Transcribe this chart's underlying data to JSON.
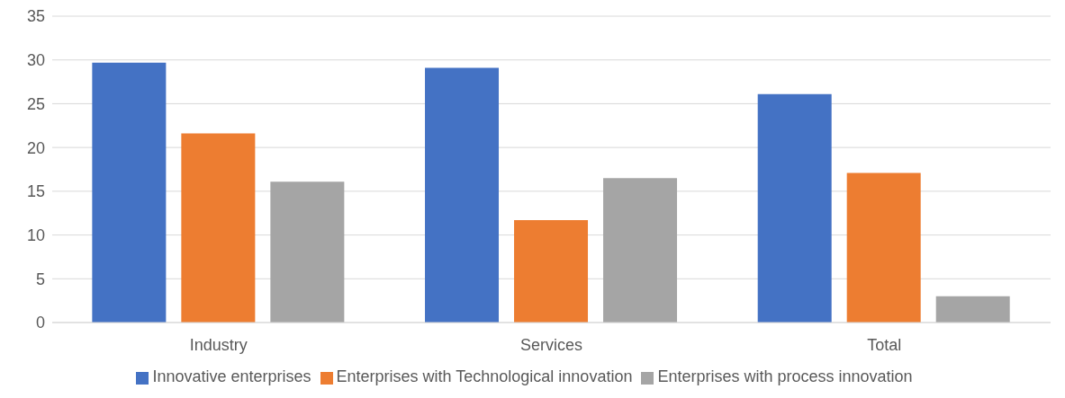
{
  "chart_data": {
    "type": "bar",
    "categories": [
      "Industry",
      "Services",
      "Total"
    ],
    "series": [
      {
        "name": "Innovative enterprises",
        "color": "#4472c4",
        "values": [
          29.7,
          29.1,
          26.1
        ]
      },
      {
        "name": "Enterprises with Technological innovation",
        "color": "#ed7d31",
        "values": [
          21.6,
          11.7,
          17.1
        ]
      },
      {
        "name": "Enterprises with process innovation",
        "color": "#a5a5a5",
        "values": [
          16.1,
          16.5,
          3.0
        ]
      }
    ],
    "ylim": [
      0,
      35
    ],
    "yticks": [
      0,
      5,
      10,
      15,
      20,
      25,
      30,
      35
    ],
    "grid": "y",
    "legend": "bottom"
  }
}
